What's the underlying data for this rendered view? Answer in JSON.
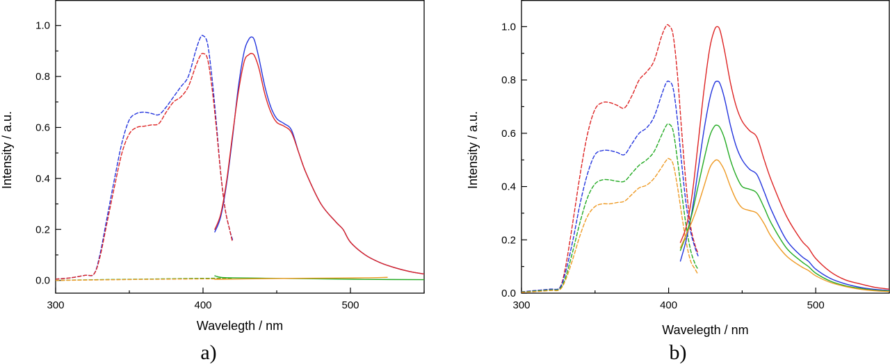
{
  "chart_data": [
    {
      "type": "line",
      "panel_label": "a)",
      "xlabel": "Wavelegth / nm",
      "ylabel": "Intensity / a.u.",
      "xlim": [
        300,
        550
      ],
      "ylim": [
        -0.05,
        1.1
      ],
      "xticks": [
        {
          "value": 300,
          "label": "300"
        },
        {
          "value": 400,
          "label": "400"
        },
        {
          "value": 500,
          "label": "500"
        }
      ],
      "yticks": [
        {
          "value": 0.0,
          "label": "0.0"
        },
        {
          "value": 0.2,
          "label": "0.2"
        },
        {
          "value": 0.4,
          "label": "0.4"
        },
        {
          "value": 0.6,
          "label": "0.6"
        },
        {
          "value": 0.8,
          "label": "0.8"
        },
        {
          "value": 1.0,
          "label": "1.0"
        }
      ],
      "grid": false,
      "series": [
        {
          "color": "#2233dd",
          "dash": true,
          "x": [
            300,
            310,
            320,
            326,
            330,
            335,
            340,
            345,
            350,
            355,
            360,
            365,
            370,
            375,
            380,
            385,
            390,
            395,
            398,
            400,
            403,
            406,
            409,
            412,
            415,
            418,
            420
          ],
          "y": [
            0.005,
            0.01,
            0.02,
            0.025,
            0.1,
            0.25,
            0.4,
            0.54,
            0.63,
            0.655,
            0.66,
            0.655,
            0.65,
            0.68,
            0.72,
            0.76,
            0.8,
            0.9,
            0.95,
            0.96,
            0.93,
            0.8,
            0.62,
            0.42,
            0.28,
            0.2,
            0.16
          ]
        },
        {
          "color": "#dd2222",
          "dash": true,
          "x": [
            300,
            310,
            320,
            326,
            330,
            335,
            340,
            345,
            350,
            355,
            360,
            365,
            370,
            375,
            380,
            385,
            390,
            395,
            398,
            400,
            403,
            406,
            409,
            412,
            415,
            418,
            420
          ],
          "y": [
            0.005,
            0.01,
            0.02,
            0.025,
            0.09,
            0.23,
            0.37,
            0.5,
            0.575,
            0.6,
            0.605,
            0.61,
            0.615,
            0.66,
            0.7,
            0.72,
            0.76,
            0.84,
            0.88,
            0.89,
            0.87,
            0.76,
            0.6,
            0.42,
            0.28,
            0.2,
            0.15
          ]
        },
        {
          "color": "#2233dd",
          "dash": false,
          "x": [
            408,
            412,
            416,
            420,
            424,
            428,
            431,
            433,
            435,
            438,
            442,
            446,
            450,
            455,
            460,
            465,
            470,
            480,
            490,
            495,
            500,
            510,
            520,
            530,
            540,
            550
          ],
          "y": [
            0.19,
            0.25,
            0.38,
            0.56,
            0.76,
            0.9,
            0.945,
            0.955,
            0.94,
            0.87,
            0.76,
            0.68,
            0.635,
            0.615,
            0.59,
            0.5,
            0.42,
            0.3,
            0.23,
            0.2,
            0.15,
            0.1,
            0.07,
            0.05,
            0.035,
            0.025
          ]
        },
        {
          "color": "#dd2222",
          "dash": false,
          "x": [
            408,
            412,
            416,
            420,
            424,
            428,
            431,
            433,
            435,
            438,
            442,
            446,
            450,
            455,
            460,
            465,
            470,
            480,
            490,
            495,
            500,
            510,
            520,
            530,
            540,
            550
          ],
          "y": [
            0.2,
            0.26,
            0.39,
            0.57,
            0.74,
            0.86,
            0.885,
            0.89,
            0.88,
            0.83,
            0.73,
            0.66,
            0.62,
            0.605,
            0.58,
            0.5,
            0.42,
            0.3,
            0.23,
            0.2,
            0.15,
            0.1,
            0.07,
            0.05,
            0.035,
            0.025
          ]
        },
        {
          "color": "#22aa22",
          "dash": true,
          "x": [
            300,
            330,
            360,
            400,
            415,
            420
          ],
          "y": [
            0.0,
            0.003,
            0.005,
            0.008,
            0.008,
            0.006
          ]
        },
        {
          "color": "#ee9922",
          "dash": true,
          "x": [
            300,
            330,
            360,
            400,
            415,
            420
          ],
          "y": [
            0.0,
            0.002,
            0.004,
            0.006,
            0.006,
            0.005
          ]
        },
        {
          "color": "#22aa22",
          "dash": false,
          "x": [
            408,
            412,
            420,
            450,
            480,
            510,
            550
          ],
          "y": [
            0.018,
            0.012,
            0.01,
            0.008,
            0.006,
            0.004,
            0.003
          ]
        },
        {
          "color": "#ee9922",
          "dash": false,
          "x": [
            408,
            430,
            460,
            490,
            510,
            525
          ],
          "y": [
            0.004,
            0.006,
            0.008,
            0.009,
            0.01,
            0.012
          ]
        }
      ]
    },
    {
      "type": "line",
      "panel_label": "b)",
      "xlabel": "Wavelegth / nm",
      "ylabel": "Intensity / a.u.",
      "xlim": [
        300,
        550
      ],
      "ylim": [
        0.0,
        1.1
      ],
      "xticks": [
        {
          "value": 300,
          "label": "300"
        },
        {
          "value": 400,
          "label": "400"
        },
        {
          "value": 500,
          "label": "500"
        }
      ],
      "yticks": [
        {
          "value": 0.0,
          "label": "0.0"
        },
        {
          "value": 0.2,
          "label": "0.2"
        },
        {
          "value": 0.4,
          "label": "0.4"
        },
        {
          "value": 0.6,
          "label": "0.6"
        },
        {
          "value": 0.8,
          "label": "0.8"
        },
        {
          "value": 1.0,
          "label": "1.0"
        }
      ],
      "grid": false,
      "series": [
        {
          "color": "#dd2222",
          "dash": true,
          "x": [
            300,
            310,
            320,
            326,
            330,
            335,
            340,
            345,
            350,
            355,
            360,
            365,
            370,
            375,
            380,
            385,
            390,
            395,
            398,
            400,
            403,
            406,
            409,
            412,
            415,
            418,
            420
          ],
          "y": [
            0.005,
            0.01,
            0.015,
            0.02,
            0.1,
            0.27,
            0.45,
            0.6,
            0.69,
            0.715,
            0.715,
            0.705,
            0.695,
            0.74,
            0.8,
            0.83,
            0.87,
            0.96,
            1.0,
            1.005,
            0.97,
            0.82,
            0.6,
            0.4,
            0.25,
            0.18,
            0.15
          ]
        },
        {
          "color": "#2233dd",
          "dash": true,
          "x": [
            300,
            310,
            320,
            326,
            330,
            335,
            340,
            345,
            350,
            355,
            360,
            365,
            370,
            375,
            380,
            385,
            390,
            395,
            398,
            400,
            403,
            406,
            409,
            412,
            415,
            418,
            420
          ],
          "y": [
            0.005,
            0.01,
            0.015,
            0.02,
            0.08,
            0.2,
            0.34,
            0.45,
            0.52,
            0.535,
            0.535,
            0.528,
            0.52,
            0.56,
            0.6,
            0.62,
            0.66,
            0.74,
            0.785,
            0.795,
            0.77,
            0.65,
            0.48,
            0.33,
            0.23,
            0.17,
            0.14
          ]
        },
        {
          "color": "#22aa22",
          "dash": true,
          "x": [
            300,
            310,
            320,
            326,
            330,
            335,
            340,
            345,
            350,
            355,
            360,
            365,
            370,
            375,
            380,
            385,
            390,
            395,
            398,
            400,
            403,
            406,
            409,
            412,
            415,
            418,
            420
          ],
          "y": [
            0.004,
            0.008,
            0.012,
            0.016,
            0.06,
            0.16,
            0.27,
            0.36,
            0.41,
            0.425,
            0.425,
            0.42,
            0.42,
            0.45,
            0.48,
            0.5,
            0.53,
            0.59,
            0.625,
            0.635,
            0.61,
            0.5,
            0.37,
            0.25,
            0.16,
            0.11,
            0.09
          ]
        },
        {
          "color": "#ee9922",
          "dash": true,
          "x": [
            300,
            310,
            320,
            326,
            330,
            335,
            340,
            345,
            350,
            355,
            360,
            365,
            370,
            375,
            380,
            385,
            390,
            395,
            398,
            400,
            403,
            406,
            409,
            412,
            415,
            418,
            420
          ],
          "y": [
            0.003,
            0.006,
            0.01,
            0.013,
            0.05,
            0.13,
            0.22,
            0.29,
            0.325,
            0.335,
            0.335,
            0.34,
            0.345,
            0.37,
            0.395,
            0.405,
            0.43,
            0.47,
            0.495,
            0.505,
            0.485,
            0.4,
            0.29,
            0.19,
            0.12,
            0.09,
            0.07
          ]
        },
        {
          "color": "#dd2222",
          "dash": false,
          "x": [
            408,
            412,
            416,
            420,
            424,
            428,
            431,
            433,
            435,
            438,
            442,
            446,
            450,
            455,
            460,
            465,
            470,
            480,
            490,
            495,
            500,
            510,
            520,
            530,
            540,
            550
          ],
          "y": [
            0.19,
            0.25,
            0.37,
            0.56,
            0.76,
            0.92,
            0.985,
            1.0,
            0.985,
            0.91,
            0.79,
            0.7,
            0.645,
            0.61,
            0.585,
            0.5,
            0.42,
            0.29,
            0.2,
            0.17,
            0.13,
            0.08,
            0.05,
            0.035,
            0.022,
            0.015
          ]
        },
        {
          "color": "#2233dd",
          "dash": false,
          "x": [
            408,
            412,
            416,
            420,
            424,
            428,
            431,
            433,
            435,
            438,
            442,
            446,
            450,
            455,
            460,
            465,
            470,
            480,
            490,
            495,
            500,
            510,
            520,
            530,
            540,
            550
          ],
          "y": [
            0.12,
            0.2,
            0.31,
            0.46,
            0.61,
            0.73,
            0.785,
            0.795,
            0.785,
            0.73,
            0.63,
            0.55,
            0.5,
            0.465,
            0.445,
            0.38,
            0.31,
            0.2,
            0.14,
            0.12,
            0.09,
            0.055,
            0.035,
            0.022,
            0.014,
            0.01
          ]
        },
        {
          "color": "#22aa22",
          "dash": false,
          "x": [
            408,
            412,
            416,
            420,
            424,
            428,
            431,
            433,
            435,
            438,
            442,
            446,
            450,
            455,
            460,
            465,
            470,
            480,
            490,
            495,
            500,
            510,
            520,
            530,
            540,
            550
          ],
          "y": [
            0.16,
            0.22,
            0.3,
            0.4,
            0.5,
            0.59,
            0.625,
            0.63,
            0.62,
            0.58,
            0.5,
            0.44,
            0.4,
            0.39,
            0.375,
            0.32,
            0.26,
            0.17,
            0.12,
            0.1,
            0.075,
            0.045,
            0.028,
            0.018,
            0.011,
            0.008
          ]
        },
        {
          "color": "#ee9922",
          "dash": false,
          "x": [
            408,
            412,
            416,
            420,
            424,
            428,
            431,
            433,
            435,
            438,
            442,
            446,
            450,
            455,
            460,
            465,
            470,
            480,
            490,
            495,
            500,
            510,
            520,
            530,
            540,
            550
          ],
          "y": [
            0.17,
            0.22,
            0.27,
            0.33,
            0.4,
            0.47,
            0.495,
            0.5,
            0.49,
            0.46,
            0.4,
            0.35,
            0.32,
            0.31,
            0.3,
            0.26,
            0.21,
            0.14,
            0.1,
            0.085,
            0.065,
            0.04,
            0.025,
            0.015,
            0.009,
            0.006
          ]
        }
      ]
    }
  ]
}
